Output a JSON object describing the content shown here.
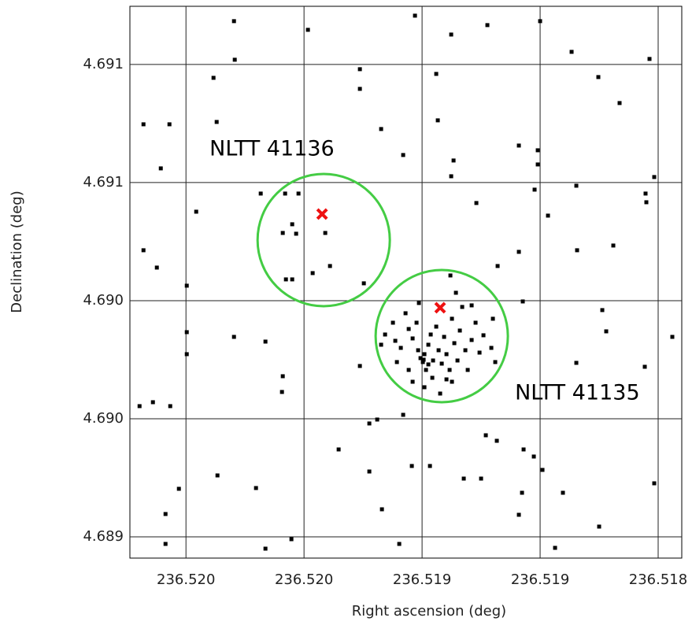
{
  "chart_data": {
    "type": "scatter",
    "xlabel": "Right ascension (deg)",
    "ylabel": "Declination (deg)",
    "xlim": [
      236.52019,
      236.51832
    ],
    "ylim": [
      4.689328,
      4.691197
    ],
    "xticks": [
      {
        "value": 236.52,
        "label": "236.520"
      },
      {
        "value": 236.5196,
        "label": "236.520"
      },
      {
        "value": 236.5192,
        "label": "236.519"
      },
      {
        "value": 236.5188,
        "label": "236.519"
      },
      {
        "value": 236.5184,
        "label": "236.518"
      }
    ],
    "yticks": [
      {
        "value": 4.6894,
        "label": "4.689"
      },
      {
        "value": 4.6898,
        "label": "4.690"
      },
      {
        "value": 4.6902,
        "label": "4.690"
      },
      {
        "value": 4.6906,
        "label": "4.691"
      },
      {
        "value": 4.691,
        "label": "4.691"
      }
    ],
    "grid": true,
    "color": "#000000",
    "x": [
      236.5198373,
      236.5195867,
      236.519224,
      236.5191013,
      236.5189787,
      236.5188,
      236.5198347,
      236.5194107,
      236.519152,
      236.5199067,
      236.5194107,
      236.5186933,
      236.5186027,
      236.5185307,
      236.5184293,
      236.520144,
      236.520056,
      236.519896,
      236.5193387,
      236.5191467,
      236.518872,
      236.518808,
      236.518808,
      236.5200853,
      236.519264,
      236.5190933,
      236.5191013,
      236.5184133,
      236.5199653,
      236.520144,
      236.5200987,
      236.5199973,
      236.5197467,
      236.519016,
      236.5188187,
      236.5186773,
      236.5184427,
      236.51844,
      236.5187733,
      236.5186747,
      236.518872,
      236.518944,
      236.518552,
      236.5188587,
      236.5185893,
      236.518576,
      236.518352,
      236.5199973,
      236.5198373,
      236.5197307,
      236.5199973,
      236.519672,
      236.5196747,
      236.5194107,
      236.5186773,
      236.5184453,
      236.5201573,
      236.520112,
      236.5200533,
      236.5193787,
      236.519352,
      236.519264,
      236.518984,
      236.5189467,
      236.518856,
      236.5188213,
      236.518792,
      236.5194827,
      236.5193787,
      236.5192347,
      236.5191733,
      236.5190587,
      236.519,
      236.5198933,
      236.520024,
      236.5197627,
      236.519336,
      236.5188613,
      236.5187227,
      236.5184133,
      236.518872,
      236.5200693,
      236.5186,
      236.5200693,
      236.5197307,
      236.5196427,
      236.5192773,
      236.5187493,
      236.519664,
      236.5196187,
      236.51964,
      236.519672,
      236.5196267,
      236.519528,
      236.5196613,
      236.51964,
      236.519512,
      236.5195707,
      236.5193973,
      236.5192987,
      236.5192907,
      236.519272,
      236.519256,
      236.5192453,
      236.519232,
      236.5192187,
      236.5192133,
      236.5192053,
      236.5191973,
      236.519192,
      236.5191867,
      236.5191787,
      236.5191707,
      236.5191653,
      236.519152,
      236.519144,
      236.5191333,
      236.5191253,
      236.5191173,
      236.5191067,
      236.5190987,
      236.5190907,
      236.51908,
      236.519072,
      236.519064,
      236.5190533,
      236.5190453,
      236.519032,
      236.5190187,
      236.5190053,
      236.518992,
      236.5189653,
      236.51896,
      236.518952,
      236.5190987,
      236.5191173,
      236.519192,
      236.519232,
      236.5192453,
      236.5192853,
      236.5193253,
      236.5193387,
      236.5192107,
      236.5190853,
      236.519032,
      236.5191787,
      236.5191947,
      236.5191627,
      236.519104,
      236.5191387
    ],
    "y": [
      4.6911467,
      4.6911173,
      4.6911653,
      4.6911013,
      4.6911333,
      4.6911467,
      4.691016,
      4.690984,
      4.690968,
      4.6909547,
      4.6909173,
      4.6910427,
      4.6909573,
      4.6908693,
      4.6910187,
      4.6907973,
      4.6907973,
      4.6908053,
      4.6907813,
      4.6908107,
      4.6907253,
      4.6907093,
      4.6906613,
      4.690648,
      4.6906933,
      4.6906747,
      4.6906213,
      4.6906187,
      4.6905013,
      4.6903707,
      4.690312,
      4.6902507,
      4.6905627,
      4.6905307,
      4.690576,
      4.6905893,
      4.6905627,
      4.6905333,
      4.690488,
      4.6903707,
      4.6903653,
      4.6903173,
      4.6903867,
      4.6901973,
      4.690168,
      4.690096,
      4.6900773,
      4.6900933,
      4.6900773,
      4.6900613,
      4.6900187,
      4.689944,
      4.6898907,
      4.6899787,
      4.6899893,
      4.689976,
      4.6898427,
      4.689856,
      4.6898427,
      4.689784,
      4.6897973,
      4.6898133,
      4.689744,
      4.6897253,
      4.689696,
      4.689672,
      4.6896267,
      4.689696,
      4.6896213,
      4.68964,
      4.68964,
      4.6895973,
      4.6895973,
      4.689608,
      4.6895627,
      4.6895653,
      4.6894933,
      4.6895493,
      4.6895493,
      4.6895813,
      4.6894747,
      4.6894773,
      4.6894347,
      4.689376,
      4.68936,
      4.689392,
      4.689376,
      4.6893627,
      4.6905627,
      4.6905627,
      4.6904587,
      4.6904293,
      4.6904267,
      4.6904293,
      4.690272,
      4.690272,
      4.6903173,
      4.6902933,
      4.6902587,
      4.6901253,
      4.690064,
      4.69004,
      4.6901573,
      4.690104,
      4.690072,
      4.6901253,
      4.690032,
      4.6900053,
      4.689992,
      4.6900187,
      4.6899653,
      4.6900507,
      4.6900853,
      4.6899387,
      4.690112,
      4.690032,
      4.6899867,
      4.6900773,
      4.6900187,
      4.6899653,
      4.6901387,
      4.690056,
      4.6899973,
      4.6900987,
      4.6901787,
      4.690032,
      4.6899653,
      4.6900667,
      4.6901253,
      4.690024,
      4.6900827,
      4.69004,
      4.6901387,
      4.689992,
      4.6899253,
      4.6899333,
      4.6899067,
      4.6899253,
      4.6899653,
      4.689992,
      4.6900853,
      4.6900507,
      4.690192,
      4.6902267,
      4.690184,
      4.689984,
      4.69,
      4.6899973,
      4.6902853,
      4.6898853
    ],
    "targets": [
      {
        "name": "NLTT 41136",
        "x": 236.5195387,
        "y": 4.6904933,
        "circle_x": 236.5195333,
        "circle_y": 4.6904053
      },
      {
        "name": "NLTT 41135",
        "x": 236.5191387,
        "y": 4.690176,
        "circle_x": 236.5191333,
        "circle_y": 4.69008
      }
    ],
    "target_color": "#ee1111",
    "circle_color": "#44cc44"
  }
}
